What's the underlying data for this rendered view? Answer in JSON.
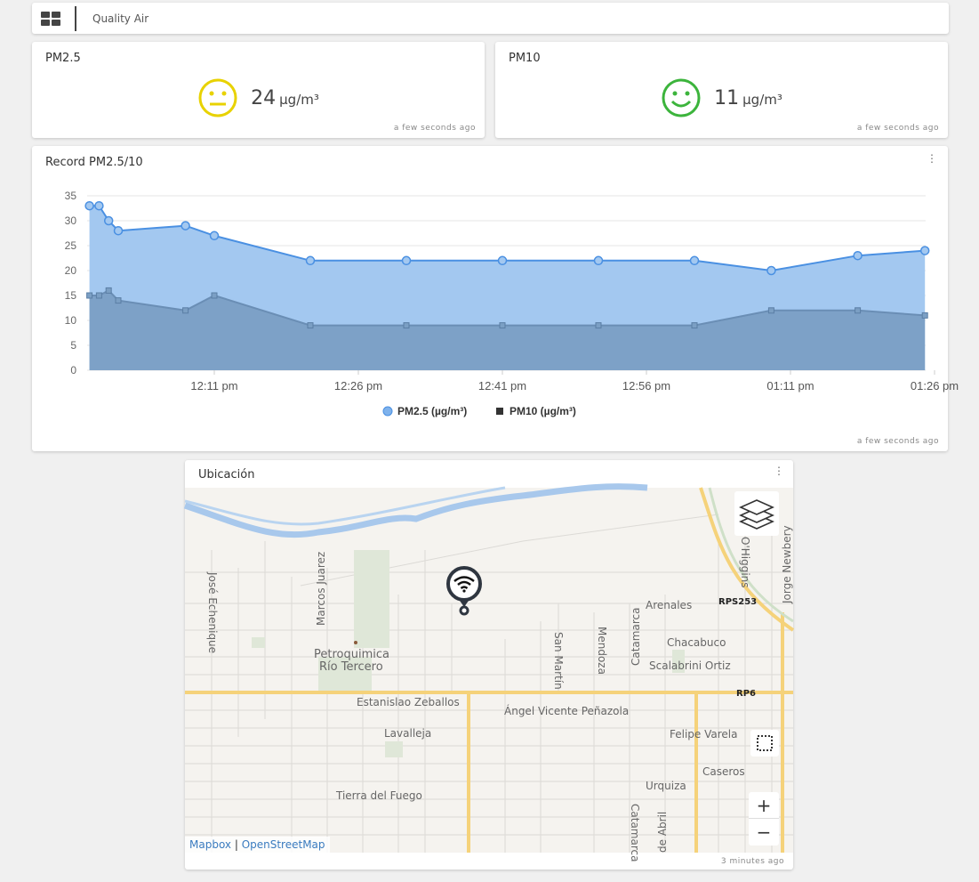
{
  "header": {
    "title": "Quality Air",
    "menu_icon": "grid-icon"
  },
  "pm25": {
    "title": "PM2.5",
    "value": "24",
    "unit": "µg/m³",
    "face": "neutral-face-icon",
    "color": "#e8d200",
    "updated": "a few seconds ago"
  },
  "pm10": {
    "title": "PM10",
    "value": "11",
    "unit": "µg/m³",
    "face": "smiley-face-icon",
    "color": "#3cb43c",
    "updated": "a few seconds ago"
  },
  "chart": {
    "title": "Record PM2.5/10",
    "updated": "a few seconds ago"
  },
  "chart_data": {
    "type": "area",
    "x": [
      "11:58",
      "11:59",
      "12:00",
      "12:01",
      "12:08",
      "12:11",
      "12:21",
      "12:31",
      "12:41",
      "12:51",
      "13:01",
      "13:09",
      "13:18",
      "13:25"
    ],
    "series": [
      {
        "name": "PM2.5 (µg/m³)",
        "values": [
          33,
          33,
          30,
          28,
          29,
          27,
          22,
          22,
          22,
          22,
          22,
          20,
          23,
          24
        ],
        "color": "#4a90e2",
        "marker": "circle"
      },
      {
        "name": "PM10 (µg/m³)",
        "values": [
          15,
          15,
          16,
          14,
          12,
          15,
          9,
          9,
          9,
          9,
          9,
          12,
          12,
          11
        ],
        "color": "#5a85b5",
        "marker": "square"
      }
    ],
    "xticks": [
      "12:11 pm",
      "12:26 pm",
      "12:41 pm",
      "12:56 pm",
      "01:11 pm",
      "01:26 pm"
    ],
    "yticks": [
      0,
      5,
      10,
      15,
      20,
      25,
      30,
      35
    ],
    "ylim": [
      0,
      35
    ],
    "grid": true,
    "legend": "bottom"
  },
  "map": {
    "title": "Ubicación",
    "updated": "3 minutes ago",
    "labels": [
      "José Echenique",
      "Marcos Juarez",
      "Petroquimica",
      "Río Tercero",
      "Estanislao Zeballos",
      "Ángel Vicente Peñazola",
      "Lavalleja",
      "Tierra del Fuego",
      "San Martín",
      "Mendoza",
      "Catamarca",
      "Arenales",
      "RPS253",
      "Chacabuco",
      "Scalabrini Ortiz",
      "RP6",
      "Felipe Varela",
      "Caseros",
      "Urquiza",
      "Catamarca",
      "de Abril",
      "O'Higgins",
      "Jorge Newbery"
    ],
    "attribution": [
      "Mapbox",
      "OpenStreetMap"
    ],
    "zoom_in": "+",
    "zoom_out": "−",
    "marker_icon": "wifi-pin-icon"
  }
}
